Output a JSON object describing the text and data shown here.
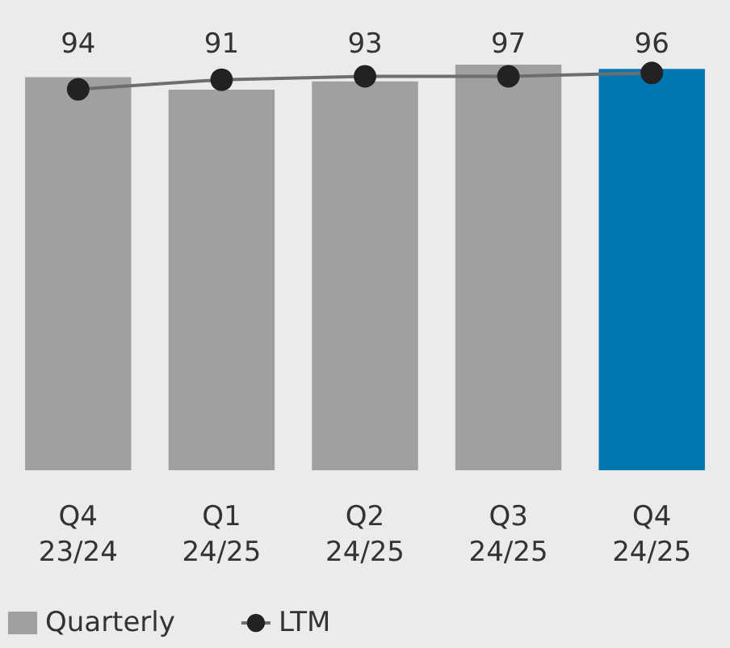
{
  "chart_data": {
    "type": "bar",
    "categories": [
      "Q4\n23/24",
      "Q1\n24/25",
      "Q2\n24/25",
      "Q3\n24/25",
      "Q4\n24/25"
    ],
    "series": [
      {
        "name": "Quarterly",
        "color": "#a0a0a0",
        "colors": [
          "#a0a0a0",
          "#a0a0a0",
          "#a0a0a0",
          "#a0a0a0",
          "#0077b0"
        ],
        "values": [
          94,
          91,
          93,
          97,
          96
        ],
        "value_labels": [
          "94",
          "91",
          "93",
          "97",
          "96"
        ]
      },
      {
        "name": "LTM",
        "type": "line",
        "color": "#6e6e6e",
        "values": [
          91.1,
          93.4,
          94.2,
          94.2,
          95
        ]
      }
    ],
    "legend": "bottom left",
    "marker": "circle",
    "tick_labels": "x"
  }
}
